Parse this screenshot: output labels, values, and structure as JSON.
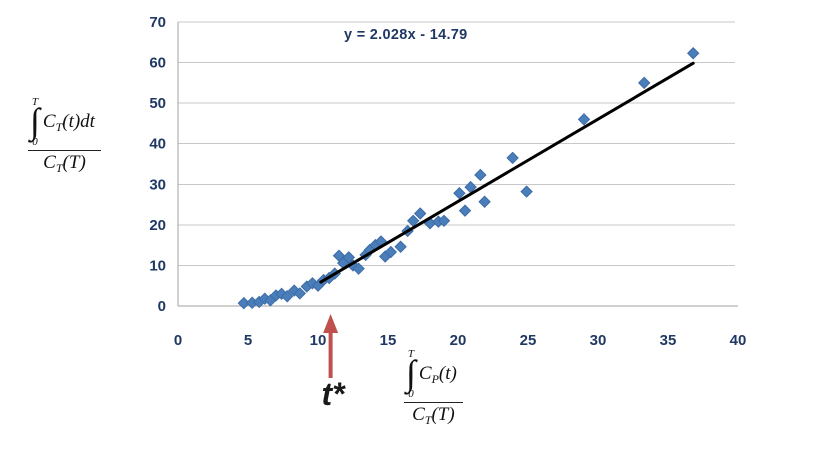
{
  "chart_data": {
    "type": "scatter",
    "title": "",
    "xlim": [
      0,
      40
    ],
    "ylim": [
      0,
      70
    ],
    "x_ticks": [
      0,
      5,
      10,
      15,
      20,
      25,
      30,
      35,
      40
    ],
    "y_ticks": [
      0,
      10,
      20,
      30,
      40,
      50,
      60,
      70
    ],
    "grid": "horizontal",
    "legend": "none",
    "points": [
      [
        4.7,
        0.7
      ],
      [
        5.3,
        0.8
      ],
      [
        5.8,
        1.0
      ],
      [
        6.2,
        1.8
      ],
      [
        6.6,
        1.4
      ],
      [
        7.0,
        2.6
      ],
      [
        7.4,
        3.0
      ],
      [
        7.8,
        2.4
      ],
      [
        8.3,
        3.8
      ],
      [
        8.7,
        3.1
      ],
      [
        9.2,
        4.8
      ],
      [
        9.6,
        5.6
      ],
      [
        10.0,
        5.0
      ],
      [
        10.4,
        6.4
      ],
      [
        10.8,
        6.9
      ],
      [
        11.2,
        8.0
      ],
      [
        11.5,
        12.4
      ],
      [
        11.8,
        10.6
      ],
      [
        12.2,
        12.0
      ],
      [
        12.5,
        10.0
      ],
      [
        12.9,
        9.2
      ],
      [
        13.4,
        12.6
      ],
      [
        13.7,
        13.8
      ],
      [
        14.1,
        15.0
      ],
      [
        14.5,
        15.9
      ],
      [
        14.8,
        12.2
      ],
      [
        15.2,
        13.3
      ],
      [
        15.9,
        14.6
      ],
      [
        16.4,
        18.5
      ],
      [
        16.8,
        21.0
      ],
      [
        17.3,
        22.8
      ],
      [
        18.0,
        20.4
      ],
      [
        18.6,
        20.8
      ],
      [
        19.0,
        21.0
      ],
      [
        20.1,
        27.8
      ],
      [
        20.5,
        23.5
      ],
      [
        20.9,
        29.3
      ],
      [
        21.6,
        32.3
      ],
      [
        21.9,
        25.7
      ],
      [
        23.9,
        36.5
      ],
      [
        24.9,
        28.2
      ],
      [
        29.0,
        46.0
      ],
      [
        33.3,
        55.0
      ],
      [
        36.8,
        62.3
      ]
    ],
    "trendline": {
      "label": "y = 2.028x - 14.79",
      "slope": 2.028,
      "intercept": -14.79,
      "x_start": 10.2,
      "x_end": 36.8,
      "color": "#000000"
    },
    "marker": {
      "shape": "diamond",
      "fill": "#4a7ebb",
      "border": "#3d6ca5",
      "size": 11
    },
    "annotation": {
      "label": "t*",
      "x": 10.9,
      "arrow_color": "#c0504d"
    },
    "colors": {
      "tick_text": "#1f3864",
      "gridline": "#c8c8c8",
      "axis_line": "#a0a0a0"
    }
  },
  "formulas": {
    "y": {
      "int_sign": "∫",
      "int_upper": "T",
      "int_lower": "0",
      "num_base": "C",
      "num_sub": "T",
      "num_tail": "(t)dt",
      "den_base": "C",
      "den_sub": "T",
      "den_tail": "(T)"
    },
    "x": {
      "int_sign": "∫",
      "int_upper": "T",
      "int_lower": "0",
      "num_base": "C",
      "num_sub": "P",
      "num_tail": "(t)",
      "den_base": "C",
      "den_sub": "T",
      "den_tail": "(T)"
    }
  }
}
